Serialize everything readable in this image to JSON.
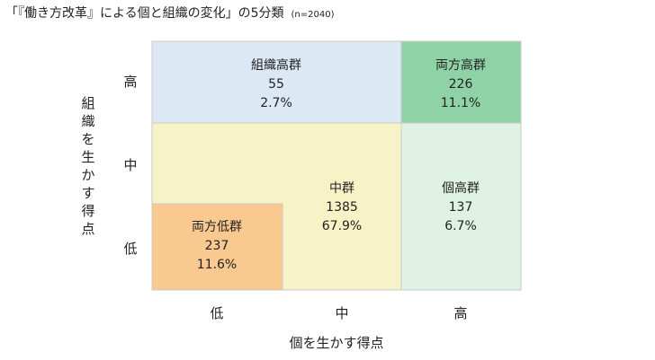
{
  "title": {
    "main": "「『働き方改革』による個と組織の変化」の5分類",
    "n": "(n=2040)"
  },
  "chart_data": {
    "type": "table",
    "xlabel": "個を生かす得点",
    "ylabel": "組織を生かす得点",
    "x_levels": [
      "低",
      "中",
      "高"
    ],
    "y_levels": [
      "高",
      "中",
      "低"
    ],
    "groups": [
      {
        "name": "組織高群",
        "count": "55",
        "percent": "2.7%",
        "value": 55,
        "pct": 2.7,
        "color": "#dde8f5",
        "region": "high-org / low-mid-individual"
      },
      {
        "name": "両方高群",
        "count": "226",
        "percent": "11.1%",
        "value": 226,
        "pct": 11.1,
        "color": "#8fd2a6",
        "region": "high / high"
      },
      {
        "name": "中群",
        "count": "1385",
        "percent": "67.9%",
        "value": 1385,
        "pct": 67.9,
        "color": "#f7f3c6",
        "region": "middle"
      },
      {
        "name": "個高群",
        "count": "137",
        "percent": "6.7%",
        "value": 137,
        "pct": 6.7,
        "color": "#dff2e4",
        "region": "high-individual / low-mid-org"
      },
      {
        "name": "両方低群",
        "count": "237",
        "percent": "11.6%",
        "value": 237,
        "pct": 11.6,
        "color": "#fac98f",
        "region": "low / low"
      }
    ]
  }
}
